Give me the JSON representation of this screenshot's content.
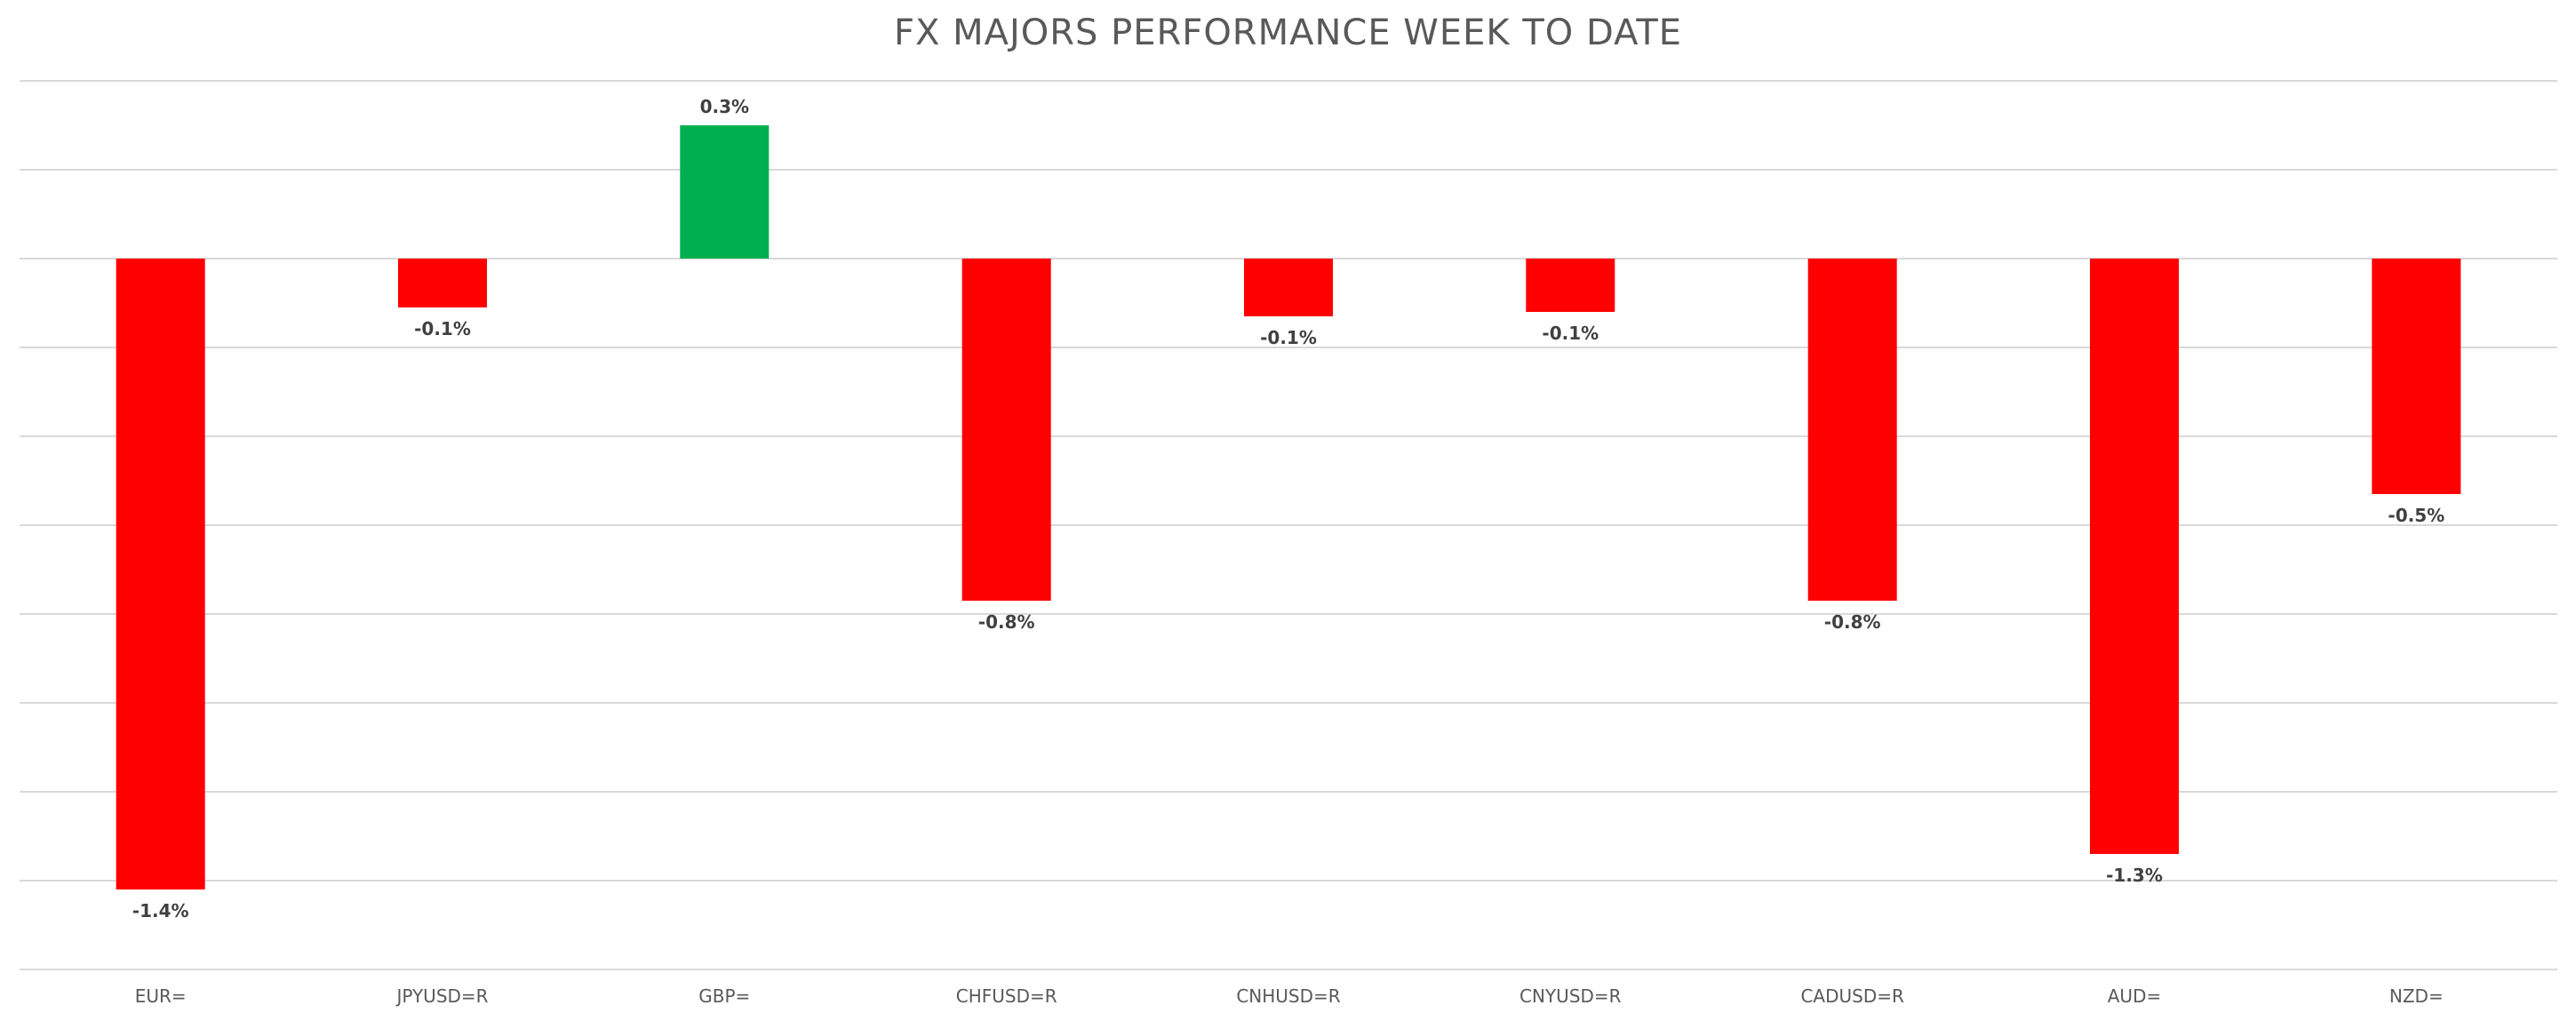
{
  "chart_data": {
    "type": "bar",
    "title": "FX MAJORS PERFORMANCE WEEK TO DATE",
    "xlabel": "",
    "ylabel": "",
    "categories": [
      "EUR=",
      "JPYUSD=R",
      "GBP=",
      "CHFUSD=R",
      "CNHUSD=R",
      "CNYUSD=R",
      "CADUSD=R",
      "AUD=",
      "NZD="
    ],
    "values": [
      -1.42,
      -0.11,
      0.3,
      -0.77,
      -0.13,
      -0.12,
      -0.77,
      -1.34,
      -0.53
    ],
    "data_labels": [
      "-1.4%",
      "-0.1%",
      "0.3%",
      "-0.8%",
      "-0.1%",
      "-0.1%",
      "-0.8%",
      "-1.3%",
      "-0.5%"
    ],
    "ylim": [
      -1.6,
      0.4
    ],
    "y_gridlines": [
      0.4,
      0.2,
      0.0,
      -0.2,
      -0.4,
      -0.6,
      -0.8,
      -1.0,
      -1.2,
      -1.4,
      -1.6
    ],
    "y_ticks_shown": false,
    "grid": true,
    "legend": "none",
    "colors": {
      "positive": "#00b050",
      "negative": "#ff0000",
      "gridline": "#d9d9d9",
      "title": "#595959",
      "label": "#404040"
    }
  }
}
